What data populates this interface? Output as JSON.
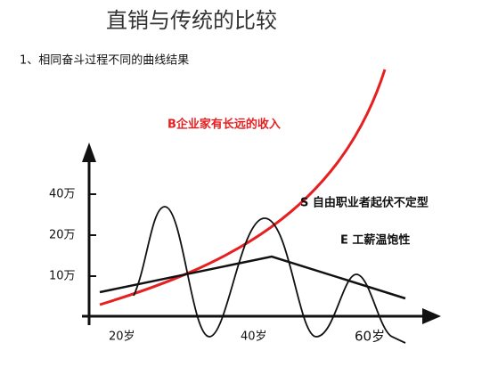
{
  "header": {
    "title": "直销与传统的比较",
    "subtitle": "1、相同奋斗过程不同的曲线结果"
  },
  "diagram": {
    "y_labels": [
      "40万",
      "20万",
      "10万"
    ],
    "x_labels": [
      "20岁",
      "40岁",
      "60岁"
    ],
    "curves": [
      {
        "label": "B企业家有长远的收入"
      },
      {
        "label": "S 自由职业者起伏不定型"
      },
      {
        "label": "E 工薪温饱性"
      }
    ]
  }
}
